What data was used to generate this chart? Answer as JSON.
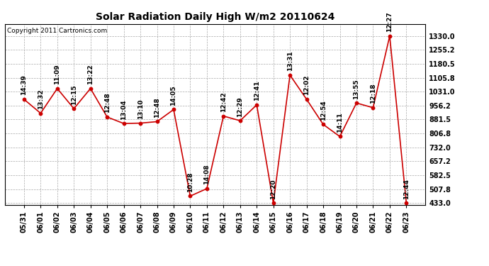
{
  "title": "Solar Radiation Daily High W/m2 20110624",
  "copyright": "Copyright 2011 Cartronics.com",
  "dates": [
    "05/31",
    "06/01",
    "06/02",
    "06/03",
    "06/04",
    "06/05",
    "06/06",
    "06/07",
    "06/08",
    "06/09",
    "06/10",
    "06/11",
    "06/12",
    "06/13",
    "06/14",
    "06/15",
    "06/16",
    "06/17",
    "06/18",
    "06/19",
    "06/20",
    "06/21",
    "06/22",
    "06/23"
  ],
  "values": [
    990,
    915,
    1048,
    940,
    1048,
    895,
    860,
    862,
    870,
    935,
    470,
    510,
    900,
    875,
    960,
    433,
    1120,
    990,
    855,
    790,
    970,
    945,
    1330,
    433
  ],
  "labels": [
    "14:39",
    "13:32",
    "11:09",
    "12:15",
    "13:22",
    "12:48",
    "13:04",
    "13:10",
    "12:48",
    "14:05",
    "10:28",
    "14:08",
    "12:42",
    "12:29",
    "12:41",
    "12:20",
    "13:31",
    "12:02",
    "12:54",
    "14:11",
    "13:55",
    "12:18",
    "12:27",
    "12:44"
  ],
  "line_color": "#cc0000",
  "marker_color": "#cc0000",
  "bg_color": "#ffffff",
  "grid_color": "#aaaaaa",
  "title_fontsize": 10,
  "copyright_fontsize": 6.5,
  "label_fontsize": 6.5,
  "tick_fontsize": 7,
  "ylim_min": 423.0,
  "ylim_max": 1395.0,
  "yticks": [
    433.0,
    507.8,
    582.5,
    657.2,
    732.0,
    806.8,
    881.5,
    956.2,
    1031.0,
    1105.8,
    1180.5,
    1255.2,
    1330.0
  ]
}
